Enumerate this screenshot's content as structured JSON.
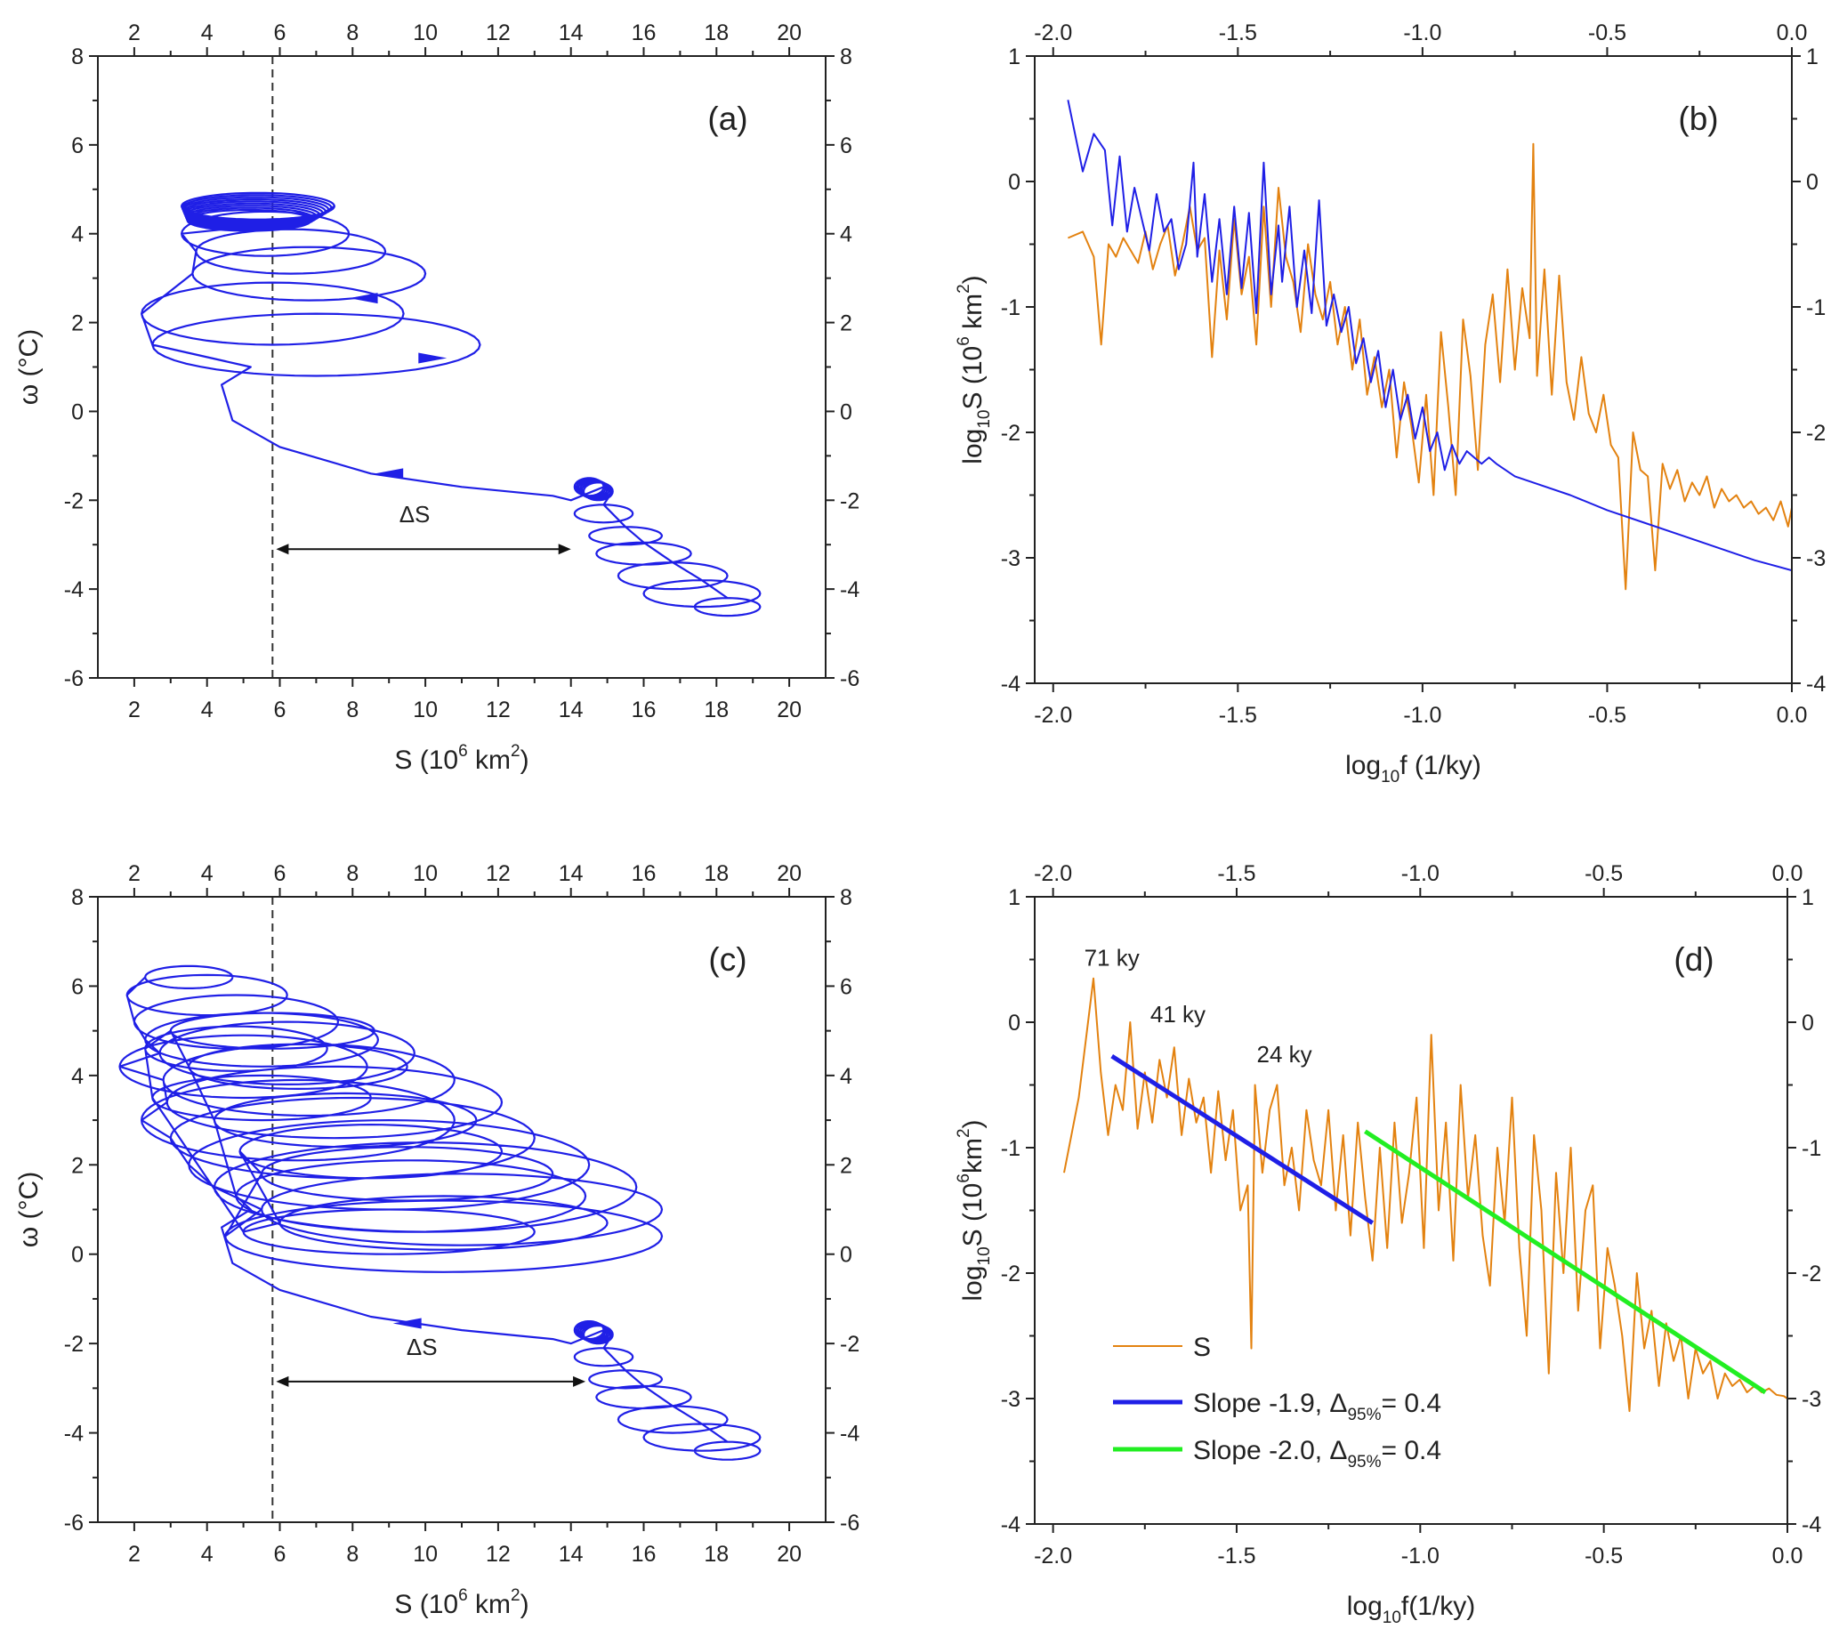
{
  "colors": {
    "blue": "#1f1fe6",
    "orange": "#e38210",
    "green": "#22ee22",
    "axis": "#222222"
  },
  "chart_data": [
    {
      "id": "a",
      "type": "line",
      "panel_label": "(a)",
      "xlabel_main": "S (10",
      "xlabel_sup": "6",
      "xlabel_unit": " km",
      "xlabel_sup2": "2",
      "xlabel_end": ")",
      "ylabel": "ω (°C)",
      "xlim": [
        1,
        21
      ],
      "ylim": [
        -6,
        8
      ],
      "xticks": [
        2,
        4,
        6,
        8,
        10,
        12,
        14,
        16,
        18,
        20
      ],
      "yticks": [
        -6,
        -4,
        -2,
        0,
        2,
        4,
        6,
        8
      ],
      "dashed_x": 5.8,
      "arrow_x": [
        5.9,
        14.0
      ],
      "arrow_y": -3.1,
      "arrow_label": "ΔS",
      "series": [
        {
          "name": "phase trajectory",
          "color": "#1f1fe6"
        }
      ]
    },
    {
      "id": "b",
      "type": "line",
      "panel_label": "(b)",
      "xlabel_main": "log",
      "xlabel_sub": "10",
      "xlabel_rest": "f (1/ky)",
      "ylabel_main": "log",
      "ylabel_sub": "10",
      "ylabel_rest": "S (10",
      "ylabel_sup": "6",
      "ylabel_unit": " km",
      "ylabel_sup2": "2",
      "ylabel_end": ")",
      "xlim": [
        -2.05,
        0
      ],
      "ylim": [
        -4,
        1
      ],
      "xticks": [
        -2.0,
        -1.5,
        -1.0,
        -0.5,
        0.0
      ],
      "xtick_labels": [
        "-2.0",
        "-1.5",
        "-1.0",
        "-0.5",
        "0.0"
      ],
      "yticks": [
        -4,
        -3,
        -2,
        -1,
        0,
        1
      ],
      "series": [
        {
          "name": "blue spectrum",
          "color": "#1f1fe6",
          "x": [
            -1.96,
            -1.92,
            -1.89,
            -1.86,
            -1.84,
            -1.82,
            -1.8,
            -1.78,
            -1.76,
            -1.74,
            -1.72,
            -1.7,
            -1.68,
            -1.66,
            -1.64,
            -1.62,
            -1.61,
            -1.59,
            -1.57,
            -1.55,
            -1.53,
            -1.51,
            -1.49,
            -1.47,
            -1.45,
            -1.43,
            -1.41,
            -1.39,
            -1.38,
            -1.36,
            -1.34,
            -1.32,
            -1.3,
            -1.28,
            -1.26,
            -1.24,
            -1.22,
            -1.2,
            -1.18,
            -1.16,
            -1.14,
            -1.12,
            -1.1,
            -1.08,
            -1.06,
            -1.04,
            -1.02,
            -1.0,
            -0.98,
            -0.96,
            -0.94,
            -0.92,
            -0.9,
            -0.88,
            -0.86,
            -0.84,
            -0.82,
            -0.8,
            -0.75,
            -0.7,
            -0.6,
            -0.5,
            -0.4,
            -0.3,
            -0.2,
            -0.1,
            0.0
          ],
          "y": [
            0.65,
            0.08,
            0.38,
            0.25,
            -0.35,
            0.2,
            -0.4,
            -0.05,
            -0.3,
            -0.55,
            -0.1,
            -0.4,
            -0.3,
            -0.7,
            -0.5,
            0.15,
            -0.6,
            -0.1,
            -0.8,
            -0.3,
            -0.9,
            -0.2,
            -0.85,
            -0.25,
            -1.05,
            0.15,
            -0.9,
            -0.35,
            -0.8,
            -0.2,
            -1.0,
            -0.55,
            -1.05,
            -0.15,
            -1.15,
            -0.9,
            -1.2,
            -1.0,
            -1.45,
            -1.25,
            -1.6,
            -1.35,
            -1.8,
            -1.5,
            -1.9,
            -1.7,
            -2.05,
            -1.8,
            -2.15,
            -2.0,
            -2.3,
            -2.1,
            -2.25,
            -2.15,
            -2.2,
            -2.25,
            -2.2,
            -2.25,
            -2.35,
            -2.4,
            -2.5,
            -2.62,
            -2.72,
            -2.82,
            -2.92,
            -3.02,
            -3.1
          ]
        },
        {
          "name": "orange spectrum",
          "color": "#e38210",
          "x": [
            -1.96,
            -1.92,
            -1.89,
            -1.87,
            -1.85,
            -1.83,
            -1.81,
            -1.79,
            -1.77,
            -1.75,
            -1.73,
            -1.71,
            -1.69,
            -1.67,
            -1.65,
            -1.63,
            -1.61,
            -1.59,
            -1.57,
            -1.55,
            -1.53,
            -1.51,
            -1.49,
            -1.47,
            -1.45,
            -1.43,
            -1.41,
            -1.39,
            -1.37,
            -1.35,
            -1.33,
            -1.31,
            -1.29,
            -1.27,
            -1.25,
            -1.23,
            -1.21,
            -1.19,
            -1.17,
            -1.15,
            -1.13,
            -1.11,
            -1.09,
            -1.07,
            -1.05,
            -1.03,
            -1.01,
            -0.99,
            -0.97,
            -0.95,
            -0.93,
            -0.91,
            -0.89,
            -0.87,
            -0.85,
            -0.83,
            -0.81,
            -0.79,
            -0.77,
            -0.75,
            -0.73,
            -0.71,
            -0.7,
            -0.69,
            -0.67,
            -0.65,
            -0.63,
            -0.61,
            -0.59,
            -0.57,
            -0.55,
            -0.53,
            -0.51,
            -0.49,
            -0.47,
            -0.45,
            -0.43,
            -0.41,
            -0.39,
            -0.37,
            -0.35,
            -0.33,
            -0.31,
            -0.29,
            -0.27,
            -0.25,
            -0.23,
            -0.21,
            -0.19,
            -0.17,
            -0.15,
            -0.13,
            -0.11,
            -0.09,
            -0.07,
            -0.05,
            -0.03,
            -0.01,
            0.0
          ],
          "y": [
            -0.45,
            -0.4,
            -0.6,
            -1.3,
            -0.5,
            -0.6,
            -0.45,
            -0.55,
            -0.65,
            -0.4,
            -0.7,
            -0.5,
            -0.35,
            -0.75,
            -0.5,
            -0.2,
            -0.55,
            -0.45,
            -1.4,
            -0.55,
            -1.1,
            -0.3,
            -0.9,
            -0.6,
            -1.3,
            -0.2,
            -1.0,
            -0.05,
            -0.6,
            -0.8,
            -1.2,
            -0.5,
            -0.9,
            -1.1,
            -0.8,
            -1.3,
            -1.0,
            -1.5,
            -1.1,
            -1.7,
            -1.4,
            -1.8,
            -1.5,
            -2.2,
            -1.6,
            -1.95,
            -2.4,
            -1.7,
            -2.5,
            -1.2,
            -1.8,
            -2.5,
            -1.1,
            -1.55,
            -2.3,
            -1.3,
            -0.9,
            -1.6,
            -0.7,
            -1.5,
            -0.85,
            -1.25,
            0.3,
            -1.55,
            -0.7,
            -1.7,
            -0.75,
            -1.6,
            -1.9,
            -1.4,
            -1.85,
            -2.0,
            -1.7,
            -2.1,
            -2.2,
            -3.25,
            -2.0,
            -2.3,
            -2.35,
            -3.1,
            -2.25,
            -2.45,
            -2.3,
            -2.55,
            -2.4,
            -2.5,
            -2.35,
            -2.6,
            -2.45,
            -2.55,
            -2.5,
            -2.6,
            -2.55,
            -2.65,
            -2.6,
            -2.7,
            -2.55,
            -2.75,
            -2.6
          ]
        }
      ]
    },
    {
      "id": "c",
      "type": "line",
      "panel_label": "(c)",
      "xlabel_main": "S (10",
      "xlabel_sup": "6",
      "xlabel_unit": " km",
      "xlabel_sup2": "2",
      "xlabel_end": ")",
      "ylabel": "ω (°C)",
      "xlim": [
        1,
        21
      ],
      "ylim": [
        -6,
        8
      ],
      "xticks": [
        2,
        4,
        6,
        8,
        10,
        12,
        14,
        16,
        18,
        20
      ],
      "yticks": [
        -6,
        -4,
        -2,
        0,
        2,
        4,
        6,
        8
      ],
      "dashed_x": 5.8,
      "arrow_x": [
        5.9,
        14.4
      ],
      "arrow_y": -2.85,
      "arrow_label": "ΔS",
      "series": [
        {
          "name": "phase trajectory",
          "color": "#1f1fe6"
        }
      ]
    },
    {
      "id": "d",
      "type": "line",
      "panel_label": "(d)",
      "xlabel_main": "log",
      "xlabel_sub": "10",
      "xlabel_rest": "f(1/ky)",
      "ylabel_main": "log",
      "ylabel_sub": "10",
      "ylabel_rest": "S (10",
      "ylabel_sup": "6",
      "ylabel_unit": "km",
      "ylabel_sup2": "2",
      "ylabel_end": ")",
      "xlim": [
        -2.05,
        0
      ],
      "ylim": [
        -4,
        1
      ],
      "xticks": [
        -2.0,
        -1.5,
        -1.0,
        -0.5,
        0.0
      ],
      "xtick_labels": [
        "-2.0",
        "-1.5",
        "-1.0",
        "-0.5",
        "0.0"
      ],
      "yticks": [
        -4,
        -3,
        -2,
        -1,
        0,
        1
      ],
      "annotations": [
        {
          "text": "71 ky",
          "x": -1.84,
          "y": 0.45
        },
        {
          "text": "41 ky",
          "x": -1.66,
          "y": 0.0
        },
        {
          "text": "24 ky",
          "x": -1.37,
          "y": -0.32
        }
      ],
      "series": [
        {
          "name": "S",
          "color": "#e38210",
          "x": [
            -1.97,
            -1.93,
            -1.89,
            -1.87,
            -1.85,
            -1.83,
            -1.81,
            -1.79,
            -1.77,
            -1.75,
            -1.73,
            -1.71,
            -1.69,
            -1.67,
            -1.65,
            -1.63,
            -1.61,
            -1.59,
            -1.57,
            -1.55,
            -1.53,
            -1.51,
            -1.49,
            -1.47,
            -1.46,
            -1.45,
            -1.43,
            -1.41,
            -1.39,
            -1.37,
            -1.35,
            -1.33,
            -1.31,
            -1.29,
            -1.27,
            -1.25,
            -1.23,
            -1.21,
            -1.19,
            -1.17,
            -1.15,
            -1.13,
            -1.11,
            -1.09,
            -1.07,
            -1.05,
            -1.03,
            -1.01,
            -0.99,
            -0.97,
            -0.95,
            -0.93,
            -0.91,
            -0.89,
            -0.87,
            -0.85,
            -0.83,
            -0.81,
            -0.79,
            -0.77,
            -0.75,
            -0.73,
            -0.71,
            -0.69,
            -0.67,
            -0.65,
            -0.63,
            -0.61,
            -0.59,
            -0.57,
            -0.55,
            -0.53,
            -0.51,
            -0.49,
            -0.47,
            -0.45,
            -0.43,
            -0.41,
            -0.39,
            -0.37,
            -0.35,
            -0.33,
            -0.31,
            -0.29,
            -0.27,
            -0.25,
            -0.23,
            -0.21,
            -0.19,
            -0.17,
            -0.15,
            -0.13,
            -0.11,
            -0.09,
            -0.07,
            -0.05,
            -0.03,
            -0.01,
            0.0
          ],
          "y": [
            -1.2,
            -0.6,
            0.35,
            -0.4,
            -0.9,
            -0.5,
            -0.7,
            0.0,
            -0.85,
            -0.4,
            -0.8,
            -0.3,
            -0.6,
            -0.2,
            -0.9,
            -0.45,
            -0.8,
            -0.6,
            -1.2,
            -0.55,
            -1.1,
            -0.7,
            -1.5,
            -1.3,
            -2.6,
            -0.5,
            -1.2,
            -0.7,
            -0.5,
            -1.3,
            -1.0,
            -1.5,
            -0.7,
            -1.1,
            -1.3,
            -0.7,
            -1.5,
            -0.9,
            -1.7,
            -0.8,
            -1.4,
            -1.9,
            -1.0,
            -1.8,
            -0.8,
            -1.6,
            -1.2,
            -0.6,
            -1.8,
            -0.1,
            -1.5,
            -0.8,
            -1.9,
            -0.5,
            -1.4,
            -0.9,
            -1.7,
            -2.1,
            -1.0,
            -1.6,
            -0.6,
            -1.8,
            -2.5,
            -0.9,
            -1.5,
            -2.8,
            -1.2,
            -2.0,
            -1.0,
            -2.3,
            -1.5,
            -1.3,
            -2.6,
            -1.8,
            -2.1,
            -2.5,
            -3.1,
            -2.0,
            -2.6,
            -2.3,
            -2.9,
            -2.4,
            -2.7,
            -2.5,
            -3.0,
            -2.6,
            -2.8,
            -2.7,
            -3.0,
            -2.8,
            -2.9,
            -2.85,
            -2.95,
            -2.9,
            -2.95,
            -2.92,
            -2.97,
            -2.98,
            -3.0
          ]
        },
        {
          "name": "Slope -1.9, Δ95%=0.4",
          "color": "#1f1fe6",
          "x": [
            -1.84,
            -1.13
          ],
          "y": [
            -0.27,
            -1.6
          ]
        },
        {
          "name": "Slope -2.0, Δ95%=0.4",
          "color": "#22ee22",
          "x": [
            -1.15,
            -0.06
          ],
          "y": [
            -0.87,
            -2.95
          ]
        }
      ],
      "legend": {
        "position": "bottom-left",
        "s_label": "S",
        "l1_a": "Slope -1.9, Δ",
        "l1_sub": "95%",
        "l1_b": "= 0.4",
        "l2_a": "Slope -2.0, Δ",
        "l2_sub": "95%",
        "l2_b": "= 0.4"
      }
    }
  ]
}
